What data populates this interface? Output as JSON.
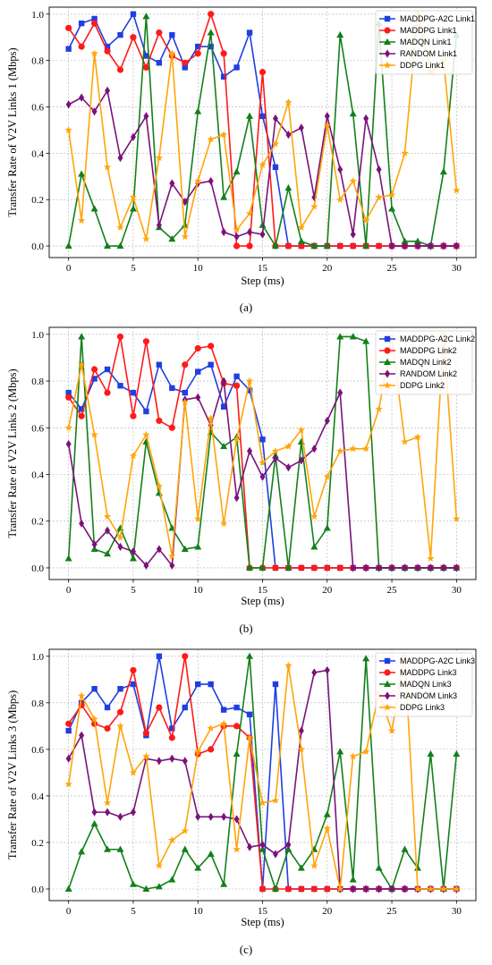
{
  "colors": {
    "MADDPG-A2C": "#1f3fe0",
    "MADDPG": "#ff1a1a",
    "MADQN": "#12801a",
    "RANDOM": "#7a127a",
    "DDPG": "#ffa50a"
  },
  "chart_data": [
    {
      "type": "line",
      "panel_label": "(a)",
      "xlabel": "Step (ms)",
      "ylabel": "Transfer Rate of V2V Links 1 (Mbps)",
      "xlim": [
        -1.5,
        31.5
      ],
      "ylim": [
        -0.05,
        1.03
      ],
      "xticks": [
        0,
        5,
        10,
        15,
        20,
        25,
        30
      ],
      "yticks": [
        0.0,
        0.2,
        0.4,
        0.6,
        0.8,
        1.0
      ],
      "grid": true,
      "legend_position": "top-right",
      "x": [
        0,
        1,
        2,
        3,
        4,
        5,
        6,
        7,
        8,
        9,
        10,
        11,
        12,
        13,
        14,
        15,
        16,
        17,
        18,
        19,
        20,
        21,
        22,
        23,
        24,
        25,
        26,
        27,
        28,
        29,
        30
      ],
      "series": [
        {
          "name": "MADDPG-A2C Link1",
          "key": "MADDPG-A2C",
          "marker": "square",
          "values": [
            0.85,
            0.96,
            0.98,
            0.86,
            0.91,
            1.0,
            0.82,
            0.79,
            0.91,
            0.77,
            0.86,
            0.86,
            0.73,
            0.77,
            0.92,
            0.56,
            0.34,
            0,
            0,
            0,
            0,
            0,
            0,
            0,
            0,
            0,
            0,
            0,
            0,
            0,
            0
          ]
        },
        {
          "name": "MADDPG Link1",
          "key": "MADDPG",
          "marker": "circle",
          "values": [
            0.94,
            0.86,
            0.96,
            0.84,
            0.76,
            0.9,
            0.77,
            0.92,
            0.82,
            0.79,
            0.83,
            1.0,
            0.83,
            0,
            0,
            0.75,
            0,
            0,
            0,
            0,
            0,
            0,
            0,
            0,
            0,
            0,
            0,
            0,
            0,
            0,
            0
          ]
        },
        {
          "name": "MADQN Link1",
          "key": "MADQN",
          "marker": "triangle",
          "values": [
            0,
            0.31,
            0.16,
            0,
            0,
            0.16,
            0.99,
            0.08,
            0.03,
            0.09,
            0.58,
            0.92,
            0.21,
            0.32,
            0.56,
            0.09,
            0,
            0.25,
            0.02,
            0,
            0,
            0.91,
            0.57,
            0,
            0.96,
            0.16,
            0.02,
            0.02,
            0,
            0.32,
            0.91
          ]
        },
        {
          "name": "RANDOM Link1",
          "key": "RANDOM",
          "marker": "diamond",
          "values": [
            0.61,
            0.64,
            0.58,
            0.67,
            0.38,
            0.47,
            0.56,
            0.09,
            0.27,
            0.19,
            0.27,
            0.28,
            0.06,
            0.04,
            0.06,
            0.05,
            0.55,
            0.48,
            0.51,
            0.21,
            0.56,
            0.33,
            0.05,
            0.55,
            0.33,
            0,
            0,
            0,
            0,
            0,
            0
          ]
        },
        {
          "name": "DDPG Link1",
          "key": "DDPG",
          "marker": "star",
          "values": [
            0.5,
            0.11,
            0.83,
            0.34,
            0.08,
            0.21,
            0.03,
            0.38,
            0.83,
            0.04,
            0.28,
            0.46,
            0.48,
            0.07,
            0.14,
            0.35,
            0.44,
            0.62,
            0.08,
            0.17,
            0.52,
            0.2,
            0.28,
            0.11,
            0.21,
            0.22,
            0.4,
            1.0,
            0.75,
            0.8,
            0.24
          ]
        }
      ]
    },
    {
      "type": "line",
      "panel_label": "(b)",
      "xlabel": "Step (ms)",
      "ylabel": "Transfer Rate of V2V Links 2 (Mbps)",
      "xlim": [
        -1.5,
        31.5
      ],
      "ylim": [
        -0.05,
        1.03
      ],
      "xticks": [
        0,
        5,
        10,
        15,
        20,
        25,
        30
      ],
      "yticks": [
        0.0,
        0.2,
        0.4,
        0.6,
        0.8,
        1.0
      ],
      "grid": true,
      "legend_position": "top-right",
      "x": [
        0,
        1,
        2,
        3,
        4,
        5,
        6,
        7,
        8,
        9,
        10,
        11,
        12,
        13,
        14,
        15,
        16,
        17,
        18,
        19,
        20,
        21,
        22,
        23,
        24,
        25,
        26,
        27,
        28,
        29,
        30
      ],
      "series": [
        {
          "name": "MADDPG-A2C Link2",
          "key": "MADDPG-A2C",
          "marker": "square",
          "values": [
            0.75,
            0.68,
            0.81,
            0.85,
            0.78,
            0.75,
            0.67,
            0.87,
            0.77,
            0.75,
            0.84,
            0.87,
            0.69,
            0.82,
            0.76,
            0.55,
            0,
            0,
            0,
            0,
            0,
            0,
            0,
            0,
            0,
            0,
            0,
            0,
            0,
            0,
            0
          ]
        },
        {
          "name": "MADDPG Link2",
          "key": "MADDPG",
          "marker": "circle",
          "values": [
            0.73,
            0.65,
            0.85,
            0.75,
            0.99,
            0.65,
            0.97,
            0.63,
            0.6,
            0.87,
            0.94,
            0.95,
            0.79,
            0.78,
            0,
            0,
            0,
            0,
            0,
            0,
            0,
            0,
            0,
            0,
            0,
            0,
            0,
            0,
            0,
            0,
            0
          ]
        },
        {
          "name": "MADQN Link2",
          "key": "MADQN",
          "marker": "triangle",
          "values": [
            0.04,
            0.99,
            0.08,
            0.06,
            0.17,
            0.04,
            0.54,
            0.32,
            0.17,
            0.08,
            0.09,
            0.58,
            0.52,
            0.56,
            0,
            0,
            0.48,
            0,
            0.54,
            0.09,
            0.17,
            0.99,
            0.99,
            0.97,
            0,
            0,
            0,
            0,
            0,
            0,
            0
          ]
        },
        {
          "name": "RANDOM Link2",
          "key": "RANDOM",
          "marker": "diamond",
          "values": [
            0.53,
            0.19,
            0.1,
            0.16,
            0.09,
            0.07,
            0.01,
            0.08,
            0.01,
            0.72,
            0.73,
            0.61,
            0.8,
            0.3,
            0.5,
            0.39,
            0.47,
            0.43,
            0.46,
            0.51,
            0.63,
            0.75,
            0,
            0,
            0,
            0,
            0,
            0,
            0,
            0,
            0
          ]
        },
        {
          "name": "DDPG Link2",
          "key": "DDPG",
          "marker": "star",
          "values": [
            0.6,
            0.87,
            0.57,
            0.22,
            0.13,
            0.48,
            0.57,
            0.35,
            0.05,
            0.71,
            0.21,
            0.64,
            0.19,
            0.55,
            0.8,
            0.45,
            0.5,
            0.52,
            0.59,
            0.22,
            0.39,
            0.5,
            0.51,
            0.51,
            0.68,
            0.99,
            0.54,
            0.56,
            0.04,
            1.0,
            0.21
          ]
        }
      ]
    },
    {
      "type": "line",
      "panel_label": "(c)",
      "xlabel": "Step (ms)",
      "ylabel": "Transfer Rate of V2V Links 3 (Mbps)",
      "xlim": [
        -1.5,
        31.5
      ],
      "ylim": [
        -0.05,
        1.03
      ],
      "xticks": [
        0,
        5,
        10,
        15,
        20,
        25,
        30
      ],
      "yticks": [
        0.0,
        0.2,
        0.4,
        0.6,
        0.8,
        1.0
      ],
      "grid": true,
      "legend_position": "top-right",
      "x": [
        0,
        1,
        2,
        3,
        4,
        5,
        6,
        7,
        8,
        9,
        10,
        11,
        12,
        13,
        14,
        15,
        16,
        17,
        18,
        19,
        20,
        21,
        22,
        23,
        24,
        25,
        26,
        27,
        28,
        29,
        30
      ],
      "series": [
        {
          "name": "MADDPG-A2C Link3",
          "key": "MADDPG-A2C",
          "marker": "square",
          "values": [
            0.68,
            0.8,
            0.86,
            0.78,
            0.86,
            0.88,
            0.66,
            1.0,
            0.69,
            0.78,
            0.88,
            0.88,
            0.77,
            0.78,
            0.75,
            0,
            0.88,
            0,
            0,
            0,
            0,
            0,
            0,
            0,
            0,
            0,
            0,
            0,
            0,
            0,
            0
          ]
        },
        {
          "name": "MADDPG Link3",
          "key": "MADDPG",
          "marker": "circle",
          "values": [
            0.71,
            0.79,
            0.71,
            0.69,
            0.76,
            0.94,
            0.67,
            0.78,
            0.65,
            1.0,
            0.58,
            0.6,
            0.7,
            0.7,
            0.65,
            0,
            0,
            0,
            0,
            0,
            0,
            0,
            0,
            0,
            0,
            0,
            0,
            0,
            0,
            0,
            0
          ]
        },
        {
          "name": "MADQN Link3",
          "key": "MADQN",
          "marker": "triangle",
          "values": [
            0,
            0.16,
            0.28,
            0.17,
            0.17,
            0.02,
            0,
            0.01,
            0.04,
            0.17,
            0.09,
            0.15,
            0.02,
            0.58,
            1.0,
            0.17,
            0,
            0.17,
            0.09,
            0.17,
            0.32,
            0.59,
            0.04,
            0.99,
            0.09,
            0,
            0.17,
            0.09,
            0.58,
            0,
            0.58
          ]
        },
        {
          "name": "RANDOM Link3",
          "key": "RANDOM",
          "marker": "diamond",
          "values": [
            0.56,
            0.66,
            0.33,
            0.33,
            0.31,
            0.33,
            0.56,
            0.55,
            0.56,
            0.55,
            0.31,
            0.31,
            0.31,
            0.3,
            0.18,
            0.19,
            0.15,
            0.19,
            0.68,
            0.93,
            0.94,
            0,
            0,
            0,
            0,
            0,
            0,
            0,
            0,
            0,
            0
          ]
        },
        {
          "name": "DDPG Link3",
          "key": "DDPG",
          "marker": "star",
          "values": [
            0.45,
            0.83,
            0.73,
            0.37,
            0.7,
            0.5,
            0.57,
            0.1,
            0.21,
            0.25,
            0.59,
            0.69,
            0.71,
            0.17,
            0.65,
            0.37,
            0.38,
            0.96,
            0.6,
            0.1,
            0.26,
            0,
            0.57,
            0.59,
            0.84,
            0.68,
            1.0,
            0,
            0,
            0,
            0
          ]
        }
      ]
    }
  ]
}
